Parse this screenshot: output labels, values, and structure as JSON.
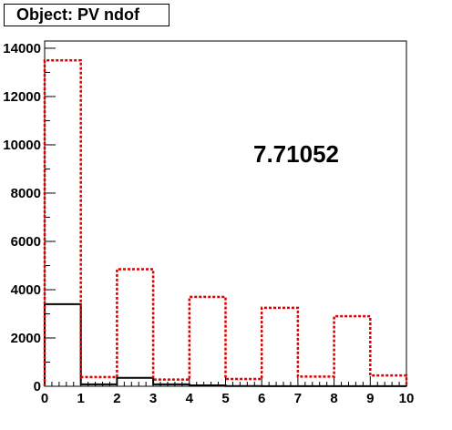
{
  "title": "Object: PV ndof",
  "colors": {
    "series_black": "#000000",
    "series_red": "#dd0000",
    "frame": "#000000",
    "background": "#ffffff"
  },
  "chart_data": {
    "type": "bar",
    "style": "step-histogram",
    "title": "Object: PV ndof",
    "annotation": "7.71052",
    "xlim": [
      0,
      10
    ],
    "ylim": [
      0,
      14300
    ],
    "x_ticks": [
      "0",
      "1",
      "2",
      "3",
      "4",
      "5",
      "6",
      "7",
      "8",
      "9",
      "10"
    ],
    "y_ticks": [
      "0",
      "2000",
      "4000",
      "6000",
      "8000",
      "10000",
      "12000",
      "14000"
    ],
    "bin_edges": [
      0,
      1,
      2,
      3,
      4,
      5,
      6,
      7,
      8,
      9,
      10
    ],
    "grid": false,
    "series": [
      {
        "line": "solid",
        "color": "#000000",
        "values": [
          3400,
          80,
          350,
          80,
          40,
          10,
          5,
          5,
          5,
          5
        ]
      },
      {
        "line": "dashed",
        "color": "#dd0000",
        "values": [
          13500,
          380,
          4850,
          280,
          3700,
          300,
          3250,
          400,
          2900,
          450
        ]
      }
    ]
  }
}
